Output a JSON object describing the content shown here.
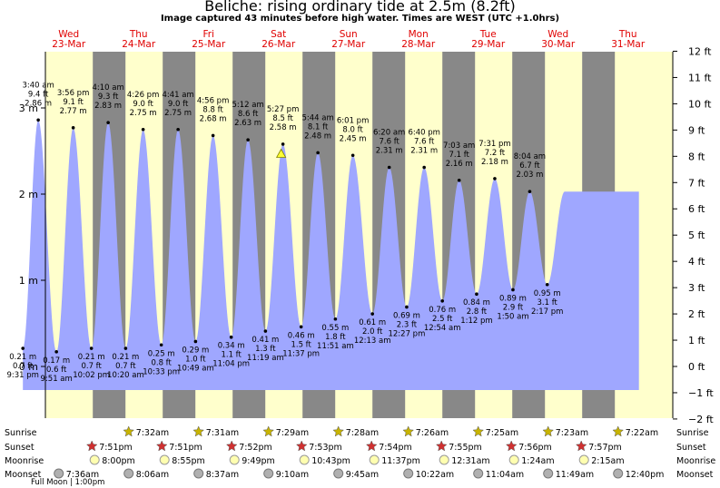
{
  "title": "Beliche: rising  ordinary tide at 2.5m (8.2ft)",
  "subtitle": "Image captured 43 minutes before high water. Times are WEST (UTC +1.0hrs)",
  "chart_data": {
    "type": "area",
    "left_axis": {
      "unit": "m",
      "ticks": [
        "0 m",
        "1 m",
        "2 m",
        "3 m"
      ],
      "values": [
        0,
        1,
        2,
        3
      ]
    },
    "right_axis": {
      "unit": "ft",
      "ticks": [
        "−2 ft",
        "−1 ft",
        "0 ft",
        "1 ft",
        "2 ft",
        "3 ft",
        "4 ft",
        "5 ft",
        "6 ft",
        "7 ft",
        "8 ft",
        "9 ft",
        "10 ft",
        "11 ft",
        "12 ft"
      ],
      "values": [
        -2,
        -1,
        0,
        1,
        2,
        3,
        4,
        5,
        6,
        7,
        8,
        9,
        10,
        11,
        12
      ]
    },
    "ylim_m": [
      -0.6096,
      3.6576
    ],
    "days": [
      {
        "day": "Wed",
        "date": "23-Mar"
      },
      {
        "day": "Thu",
        "date": "24-Mar"
      },
      {
        "day": "Fri",
        "date": "25-Mar"
      },
      {
        "day": "Sat",
        "date": "26-Mar"
      },
      {
        "day": "Sun",
        "date": "27-Mar"
      },
      {
        "day": "Mon",
        "date": "28-Mar"
      },
      {
        "day": "Tue",
        "date": "29-Mar"
      },
      {
        "day": "Wed",
        "date": "30-Mar"
      },
      {
        "day": "Thu",
        "date": "31-Mar"
      }
    ],
    "tides": [
      {
        "kind": "low",
        "time": "9:31 pm",
        "m": 0.21,
        "m_label": "0.21 m",
        "ft_label": "0.7 ft",
        "dh": -0.5
      },
      {
        "kind": "high",
        "time": "3:40 am",
        "m": 2.86,
        "m_label": "2.86 m",
        "ft_label": "9.4 ft",
        "dh": -0.28
      },
      {
        "kind": "low",
        "time": "9:51 am",
        "m": 0.17,
        "m_label": "0.17 m",
        "ft_label": "0.6 ft",
        "dh": -0.02
      },
      {
        "kind": "high",
        "time": "3:56 pm",
        "m": 2.77,
        "m_label": "2.77 m",
        "ft_label": "9.1 ft",
        "dh": 0.22
      },
      {
        "kind": "low",
        "time": "10:02 pm",
        "m": 0.21,
        "m_label": "0.21 m",
        "ft_label": "0.7 ft",
        "dh": 0.48
      },
      {
        "kind": "high",
        "time": "4:10 am",
        "m": 2.83,
        "m_label": "2.83 m",
        "ft_label": "9.3 ft",
        "dh": 0.72
      },
      {
        "kind": "low",
        "time": "10:20 am",
        "m": 0.21,
        "m_label": "0.21 m",
        "ft_label": "0.7 ft",
        "dh": 0.97
      },
      {
        "kind": "high",
        "time": "4:26 pm",
        "m": 2.75,
        "m_label": "2.75 m",
        "ft_label": "9.0 ft",
        "dh": 1.22
      },
      {
        "kind": "low",
        "time": "10:33 pm",
        "m": 0.25,
        "m_label": "0.25 m",
        "ft_label": "0.8 ft",
        "dh": 1.48
      },
      {
        "kind": "high",
        "time": "4:41 am",
        "m": 2.75,
        "m_label": "2.75 m",
        "ft_label": "9.0 ft",
        "dh": 1.72
      },
      {
        "kind": "low",
        "time": "10:49 am",
        "m": 0.29,
        "m_label": "0.29 m",
        "ft_label": "1.0 ft",
        "dh": 1.97
      },
      {
        "kind": "high",
        "time": "4:56 pm",
        "m": 2.68,
        "m_label": "2.68 m",
        "ft_label": "8.8 ft",
        "dh": 2.22
      },
      {
        "kind": "low",
        "time": "11:04 pm",
        "m": 0.34,
        "m_label": "0.34 m",
        "ft_label": "1.1 ft",
        "dh": 2.48
      },
      {
        "kind": "high",
        "time": "5:12 am",
        "m": 2.63,
        "m_label": "2.63 m",
        "ft_label": "8.6 ft",
        "dh": 2.72
      },
      {
        "kind": "low",
        "time": "11:19 am",
        "m": 0.41,
        "m_label": "0.41 m",
        "ft_label": "1.3 ft",
        "dh": 2.97
      },
      {
        "kind": "high",
        "time": "5:27 pm",
        "m": 2.58,
        "m_label": "2.58 m",
        "ft_label": "8.5 ft",
        "dh": 3.22
      },
      {
        "kind": "low",
        "time": "11:37 pm",
        "m": 0.46,
        "m_label": "0.46 m",
        "ft_label": "1.5 ft",
        "dh": 3.48
      },
      {
        "kind": "high",
        "time": "5:44 am",
        "m": 2.48,
        "m_label": "2.48 m",
        "ft_label": "8.1 ft",
        "dh": 3.72
      },
      {
        "kind": "low",
        "time": "11:51 am",
        "m": 0.55,
        "m_label": "0.55 m",
        "ft_label": "1.8 ft",
        "dh": 3.97
      },
      {
        "kind": "high",
        "time": "6:01 pm",
        "m": 2.45,
        "m_label": "2.45 m",
        "ft_label": "8.0 ft",
        "dh": 4.22
      },
      {
        "kind": "low",
        "time": "12:13 am",
        "m": 0.61,
        "m_label": "0.61 m",
        "ft_label": "2.0 ft",
        "dh": 4.5
      },
      {
        "kind": "high",
        "time": "6:20 am",
        "m": 2.31,
        "m_label": "2.31 m",
        "ft_label": "7.6 ft",
        "dh": 4.74
      },
      {
        "kind": "low",
        "time": "12:27 pm",
        "m": 0.69,
        "m_label": "0.69 m",
        "ft_label": "2.3 ft",
        "dh": 4.99
      },
      {
        "kind": "high",
        "time": "6:40 pm",
        "m": 2.31,
        "m_label": "2.31 m",
        "ft_label": "7.6 ft",
        "dh": 5.24
      },
      {
        "kind": "low",
        "time": "12:54 am",
        "m": 0.76,
        "m_label": "0.76 m",
        "ft_label": "2.5 ft",
        "dh": 5.5
      },
      {
        "kind": "high",
        "time": "7:03 am",
        "m": 2.16,
        "m_label": "2.16 m",
        "ft_label": "7.1 ft",
        "dh": 5.74
      },
      {
        "kind": "low",
        "time": "1:12 pm",
        "m": 0.84,
        "m_label": "0.84 m",
        "ft_label": "2.8 ft",
        "dh": 5.99
      },
      {
        "kind": "high",
        "time": "7:31 pm",
        "m": 2.18,
        "m_label": "2.18 m",
        "ft_label": "7.2 ft",
        "dh": 6.25
      },
      {
        "kind": "low",
        "time": "1:50 am",
        "m": 0.89,
        "m_label": "0.89 m",
        "ft_label": "2.9 ft",
        "dh": 6.51
      },
      {
        "kind": "high",
        "time": "8:04 am",
        "m": 2.03,
        "m_label": "2.03 m",
        "ft_label": "6.7 ft",
        "dh": 6.75
      },
      {
        "kind": "low",
        "time": "2:17 pm",
        "m": 0.95,
        "m_label": "0.95 m",
        "ft_label": "3.1 ft",
        "dh": 7.0
      }
    ],
    "current_marker": {
      "m": 2.5
    }
  },
  "astro": {
    "labels": {
      "sunrise": "Sunrise",
      "sunset": "Sunset",
      "moonrise": "Moonrise",
      "moonset": "Moonset"
    },
    "sunrise": [
      "7:32am",
      "7:31am",
      "7:29am",
      "7:28am",
      "7:26am",
      "7:25am",
      "7:23am",
      "7:22am"
    ],
    "sunset": [
      "7:51pm",
      "7:51pm",
      "7:52pm",
      "7:53pm",
      "7:54pm",
      "7:55pm",
      "7:56pm",
      "7:57pm"
    ],
    "moonrise": [
      "8:00pm",
      "8:55pm",
      "9:49pm",
      "10:43pm",
      "11:37pm",
      "12:31am",
      "1:24am",
      "2:15am"
    ],
    "moonset": [
      "7:36am",
      "8:06am",
      "8:37am",
      "9:10am",
      "9:45am",
      "10:22am",
      "11:04am",
      "11:49am",
      "12:40pm"
    ],
    "full_moon": "Full Moon | 1:00pm"
  },
  "colors": {
    "water": "#9fa7ff",
    "day": "#ffffcc",
    "night": "#888888",
    "daylabel": "#e00000",
    "sun": "#c8b400",
    "sunset_star": "#d03030"
  }
}
